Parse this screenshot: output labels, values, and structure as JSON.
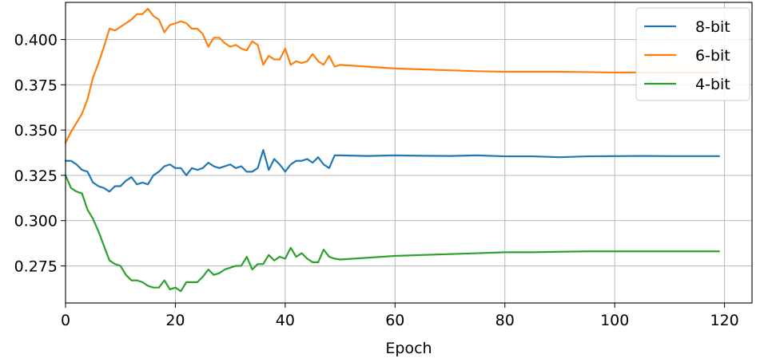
{
  "chart_data": {
    "type": "line",
    "title": "",
    "xlabel": "Epoch",
    "ylabel": "",
    "xlim": [
      0,
      125
    ],
    "ylim": [
      0.2545,
      0.4205
    ],
    "x_ticks": [
      0,
      20,
      40,
      60,
      80,
      100,
      120
    ],
    "x_tick_labels": [
      "0",
      "20",
      "40",
      "60",
      "80",
      "100",
      "120"
    ],
    "y_ticks": [
      0.275,
      0.3,
      0.325,
      0.35,
      0.375,
      0.4
    ],
    "y_tick_labels": [
      "0.275",
      "0.300",
      "0.325",
      "0.350",
      "0.375",
      "0.400"
    ],
    "grid": true,
    "legend_position": "top-right",
    "series": [
      {
        "name": "8-bit",
        "color": "#1f77b4",
        "x": [
          0,
          1,
          2,
          3,
          4,
          5,
          6,
          7,
          8,
          9,
          10,
          11,
          12,
          13,
          14,
          15,
          16,
          17,
          18,
          19,
          20,
          21,
          22,
          23,
          24,
          25,
          26,
          27,
          28,
          29,
          30,
          31,
          32,
          33,
          34,
          35,
          36,
          37,
          38,
          39,
          40,
          41,
          42,
          43,
          44,
          45,
          46,
          47,
          48,
          49,
          50,
          55,
          60,
          65,
          70,
          75,
          80,
          85,
          90,
          95,
          100,
          105,
          110,
          115,
          119
        ],
        "y": [
          0.333,
          0.333,
          0.331,
          0.328,
          0.327,
          0.321,
          0.319,
          0.318,
          0.316,
          0.319,
          0.319,
          0.322,
          0.324,
          0.32,
          0.321,
          0.32,
          0.325,
          0.327,
          0.33,
          0.331,
          0.329,
          0.329,
          0.325,
          0.329,
          0.328,
          0.329,
          0.332,
          0.33,
          0.329,
          0.33,
          0.331,
          0.329,
          0.33,
          0.327,
          0.327,
          0.329,
          0.339,
          0.328,
          0.334,
          0.331,
          0.327,
          0.331,
          0.333,
          0.333,
          0.334,
          0.332,
          0.335,
          0.331,
          0.329,
          0.336,
          0.336,
          0.3357,
          0.336,
          0.3358,
          0.3357,
          0.336,
          0.3355,
          0.3355,
          0.335,
          0.3355,
          0.3356,
          0.3357,
          0.3356,
          0.3356,
          0.3356
        ]
      },
      {
        "name": "6-bit",
        "color": "#ff7f0e",
        "x": [
          0,
          1,
          2,
          3,
          4,
          5,
          6,
          7,
          8,
          9,
          10,
          11,
          12,
          13,
          14,
          15,
          16,
          17,
          18,
          19,
          20,
          21,
          22,
          23,
          24,
          25,
          26,
          27,
          28,
          29,
          30,
          31,
          32,
          33,
          34,
          35,
          36,
          37,
          38,
          39,
          40,
          41,
          42,
          43,
          44,
          45,
          46,
          47,
          48,
          49,
          50,
          55,
          60,
          65,
          70,
          75,
          80,
          85,
          90,
          95,
          100,
          105,
          110,
          115,
          119
        ],
        "y": [
          0.343,
          0.349,
          0.354,
          0.359,
          0.367,
          0.379,
          0.387,
          0.396,
          0.406,
          0.405,
          0.407,
          0.409,
          0.411,
          0.414,
          0.414,
          0.417,
          0.413,
          0.411,
          0.404,
          0.408,
          0.409,
          0.41,
          0.409,
          0.406,
          0.406,
          0.403,
          0.396,
          0.401,
          0.401,
          0.398,
          0.396,
          0.397,
          0.395,
          0.394,
          0.399,
          0.397,
          0.386,
          0.391,
          0.389,
          0.389,
          0.395,
          0.386,
          0.388,
          0.387,
          0.388,
          0.392,
          0.388,
          0.386,
          0.391,
          0.385,
          0.386,
          0.385,
          0.384,
          0.3835,
          0.383,
          0.3825,
          0.3822,
          0.3822,
          0.3822,
          0.382,
          0.3818,
          0.3818,
          0.3818,
          0.3818,
          0.3818
        ]
      },
      {
        "name": "4-bit",
        "color": "#2ca02c",
        "x": [
          0,
          1,
          2,
          3,
          4,
          5,
          6,
          7,
          8,
          9,
          10,
          11,
          12,
          13,
          14,
          15,
          16,
          17,
          18,
          19,
          20,
          21,
          22,
          23,
          24,
          25,
          26,
          27,
          28,
          29,
          30,
          31,
          32,
          33,
          34,
          35,
          36,
          37,
          38,
          39,
          40,
          41,
          42,
          43,
          44,
          45,
          46,
          47,
          48,
          49,
          50,
          55,
          60,
          65,
          70,
          75,
          80,
          85,
          90,
          95,
          100,
          105,
          110,
          115,
          119
        ],
        "y": [
          0.325,
          0.318,
          0.316,
          0.315,
          0.306,
          0.301,
          0.294,
          0.286,
          0.278,
          0.276,
          0.275,
          0.27,
          0.267,
          0.267,
          0.266,
          0.264,
          0.263,
          0.263,
          0.267,
          0.262,
          0.263,
          0.261,
          0.266,
          0.266,
          0.266,
          0.269,
          0.273,
          0.27,
          0.271,
          0.273,
          0.274,
          0.275,
          0.275,
          0.28,
          0.273,
          0.276,
          0.276,
          0.281,
          0.278,
          0.28,
          0.279,
          0.285,
          0.28,
          0.282,
          0.279,
          0.277,
          0.277,
          0.284,
          0.28,
          0.279,
          0.2785,
          0.2795,
          0.2805,
          0.281,
          0.2815,
          0.282,
          0.2825,
          0.2825,
          0.2828,
          0.283,
          0.283,
          0.283,
          0.283,
          0.283,
          0.283
        ]
      }
    ]
  }
}
